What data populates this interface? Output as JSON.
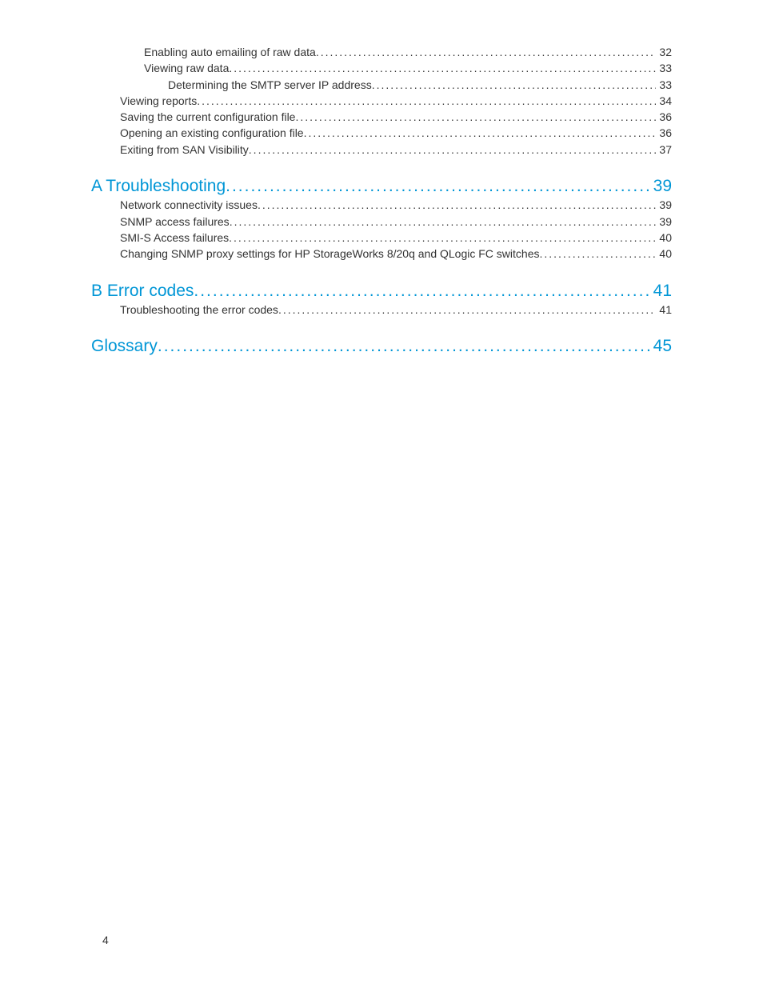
{
  "colors": {
    "link_color": "#0096d6",
    "text_color": "#333333",
    "background": "#ffffff"
  },
  "typography": {
    "body_fontsize": 14,
    "heading_fontsize": 21,
    "font_family": "Arial"
  },
  "page_number": "4",
  "toc": {
    "orphan_entries": [
      {
        "label": "Enabling auto emailing of raw data",
        "page": "32",
        "level": 3
      },
      {
        "label": "Viewing raw data",
        "page": "33",
        "level": 3
      },
      {
        "label": "Determining the SMTP server IP address",
        "page": "33",
        "level": 4
      },
      {
        "label": "Viewing reports",
        "page": "34",
        "level": 2
      },
      {
        "label": "Saving the current configuration file",
        "page": "36",
        "level": 2
      },
      {
        "label": "Opening an existing configuration file",
        "page": "36",
        "level": 2
      },
      {
        "label": "Exiting from SAN Visibility",
        "page": "37",
        "level": 2
      }
    ],
    "sections": [
      {
        "heading": {
          "label": "A Troubleshooting",
          "page": "39",
          "level": 1
        },
        "entries": [
          {
            "label": "Network connectivity issues",
            "page": "39",
            "level": 2
          },
          {
            "label": "SNMP access failures",
            "page": "39",
            "level": 2
          },
          {
            "label": "SMI-S Access failures",
            "page": "40",
            "level": 2
          },
          {
            "label": "Changing SNMP proxy settings for HP StorageWorks 8/20q and QLogic FC switches",
            "page": "40",
            "level": 2
          }
        ]
      },
      {
        "heading": {
          "label": "B Error codes",
          "page": "41",
          "level": 1
        },
        "entries": [
          {
            "label": "Troubleshooting the error codes",
            "page": "41",
            "level": 2
          }
        ]
      },
      {
        "heading": {
          "label": "Glossary",
          "page": "45",
          "level": 1
        },
        "entries": []
      }
    ]
  }
}
